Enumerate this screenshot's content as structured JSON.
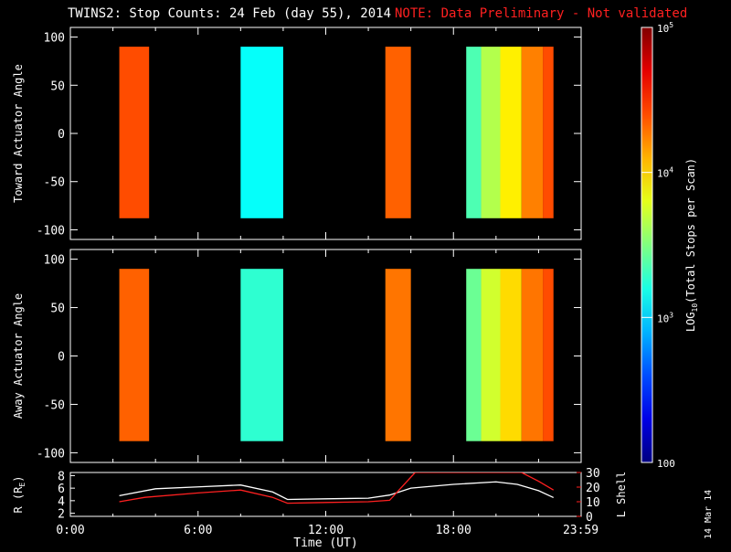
{
  "header": {
    "title": "TWINS2: Stop Counts: 24 Feb (day  55), 2014",
    "note": "NOTE: Data Preliminary - Not validated",
    "stamp": "14 Mar 14"
  },
  "colors": {
    "background": "#000000",
    "axis": "#ffffff",
    "note": "#ff2020",
    "r_line": "#ffffff",
    "lshell_line": "#ff2020"
  },
  "chart_data": [
    {
      "type": "heatmap",
      "ylabel": "Toward Actuator Angle",
      "ylim": [
        -110,
        110
      ],
      "yticks": [
        -100,
        -50,
        0,
        50,
        100
      ],
      "xlim": [
        0,
        24
      ],
      "y_coverage": [
        -88,
        90
      ],
      "blocks": [
        {
          "x": [
            2.3,
            3.7
          ],
          "level": 0.8
        },
        {
          "x": [
            8.0,
            10.0
          ],
          "level": 0.38
        },
        {
          "x": [
            14.8,
            16.0
          ],
          "level": 0.78
        },
        {
          "x": [
            18.6,
            19.3
          ],
          "level": 0.45
        },
        {
          "x": [
            19.3,
            20.2
          ],
          "level": 0.55
        },
        {
          "x": [
            20.2,
            21.2
          ],
          "level": 0.64
        },
        {
          "x": [
            21.2,
            22.2
          ],
          "level": 0.75
        },
        {
          "x": [
            22.2,
            22.7
          ],
          "level": 0.8
        }
      ]
    },
    {
      "type": "heatmap",
      "ylabel": "Away Actuator Angle",
      "ylim": [
        -110,
        110
      ],
      "yticks": [
        -100,
        -50,
        0,
        50,
        100
      ],
      "xlim": [
        0,
        24
      ],
      "y_coverage": [
        -88,
        90
      ],
      "blocks": [
        {
          "x": [
            2.3,
            3.7
          ],
          "level": 0.78
        },
        {
          "x": [
            8.0,
            10.0
          ],
          "level": 0.42
        },
        {
          "x": [
            14.8,
            16.0
          ],
          "level": 0.76
        },
        {
          "x": [
            18.6,
            19.3
          ],
          "level": 0.48
        },
        {
          "x": [
            19.3,
            20.2
          ],
          "level": 0.58
        },
        {
          "x": [
            20.2,
            21.2
          ],
          "level": 0.66
        },
        {
          "x": [
            21.2,
            22.2
          ],
          "level": 0.76
        },
        {
          "x": [
            22.2,
            22.7
          ],
          "level": 0.8
        }
      ]
    },
    {
      "type": "line",
      "xlabel": "Time (UT)",
      "xticks": [
        {
          "value": 0,
          "label": "0:00"
        },
        {
          "value": 6,
          "label": "6:00"
        },
        {
          "value": 12,
          "label": "12:00"
        },
        {
          "value": 18,
          "label": "18:00"
        },
        {
          "value": 23.98,
          "label": "23:59"
        }
      ],
      "ylabel_left": "R (R",
      "ylabel_left_sub": "E",
      "ylabel_left_end": ")",
      "ylim_left": [
        1.5,
        8.5
      ],
      "yticks_left": [
        2,
        4,
        6,
        8
      ],
      "ylabel_right": "L Shell",
      "ylim_right": [
        0,
        30
      ],
      "yticks_right": [
        0,
        10,
        20,
        30
      ],
      "series": [
        {
          "axis": "left",
          "x": [
            2.3,
            4,
            6,
            8,
            9.5,
            10.2,
            12,
            14,
            15,
            16,
            18,
            20,
            21,
            22,
            22.7
          ],
          "values": [
            4.8,
            5.9,
            6.2,
            6.5,
            5.4,
            4.2,
            4.3,
            4.4,
            4.9,
            6.0,
            6.6,
            7.0,
            6.6,
            5.6,
            4.5
          ]
        },
        {
          "axis": "right",
          "x": [
            2.3,
            3.5,
            6,
            8,
            9.5,
            10.2,
            12,
            14,
            15,
            16.2,
            21.2,
            22,
            22.7
          ],
          "values": [
            10,
            13,
            16,
            18,
            13,
            9,
            9.5,
            10,
            11,
            30,
            30,
            24,
            18
          ]
        }
      ]
    },
    {
      "type": "colorbar",
      "ylabel": "LOG",
      "ylabel_sub": "10",
      "ylabel_end": "(Total Stops per Scan)",
      "clim": [
        100,
        100000
      ],
      "ticks": [
        {
          "value": 100,
          "label": "100"
        },
        {
          "value": 1000,
          "base": "10",
          "exp": "3"
        },
        {
          "value": 10000,
          "base": "10",
          "exp": "4"
        },
        {
          "value": 100000,
          "base": "10",
          "exp": "5"
        }
      ]
    }
  ]
}
